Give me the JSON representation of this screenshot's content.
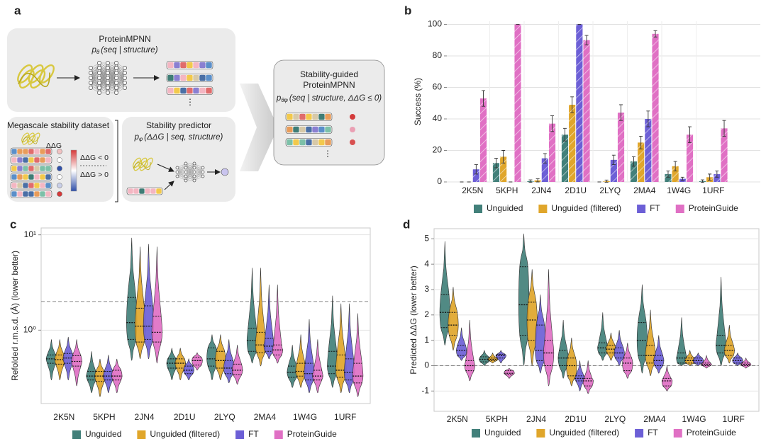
{
  "diagram": {
    "label": "a",
    "mpnn": {
      "title": "ProteinMPNN",
      "formula": {
        "p": "p",
        "sub": "θ",
        "rest": "(seq | structure)"
      },
      "ellipsis": "⋮"
    },
    "dataset": {
      "title": "Megascale stability dataset",
      "ddg": "ΔΔG",
      "neg": "ΔΔG < 0",
      "pos": "ΔΔG > 0"
    },
    "predictor": {
      "title": "Stability predictor",
      "formula": {
        "p": "p",
        "sub": "φ",
        "rest": "(ΔΔG | seq, structure)"
      }
    },
    "guided": {
      "title": [
        "Stability-guided",
        "ProteinMPNN"
      ],
      "formula": {
        "p": "p",
        "sub": "θφ",
        "rest": "(seq | structure, ΔΔG ≤ 0)"
      },
      "ellipsis": "⋮"
    }
  },
  "chart_data": [
    {
      "type": "bar",
      "label": "b",
      "ylabel": "Success (%)",
      "categories": [
        "2K5N",
        "5KPH",
        "2JN4",
        "2D1U",
        "2LYQ",
        "2MA4",
        "1W4G",
        "1URF"
      ],
      "ylim": [
        0,
        102
      ],
      "yticks": [
        0,
        20,
        40,
        60,
        80,
        100
      ],
      "grid": true,
      "series": [
        {
          "name": "Unguided",
          "color": "#42807a",
          "values": [
            0,
            12,
            0.5,
            30,
            0,
            13,
            5,
            0.5
          ],
          "errors": [
            0,
            3,
            0.8,
            4,
            0,
            3,
            2,
            0.8
          ]
        },
        {
          "name": "Unguided (filtered)",
          "color": "#e0a62b",
          "values": [
            0,
            16,
            1,
            49,
            0.5,
            25,
            10,
            3
          ],
          "errors": [
            0,
            4,
            1,
            5,
            0.7,
            4,
            3,
            2
          ]
        },
        {
          "name": "FT",
          "color": "#6c5fd6",
          "values": [
            8,
            0,
            15,
            100,
            14,
            40,
            2,
            5
          ],
          "errors": [
            3,
            0,
            3,
            0,
            3,
            5,
            1,
            2
          ]
        },
        {
          "name": "ProteinGuide",
          "color": "#e070c4",
          "values": [
            53,
            100,
            37,
            90,
            44,
            94,
            30,
            34
          ],
          "errors": [
            5,
            0,
            5,
            3,
            5,
            2,
            5,
            5
          ]
        }
      ]
    },
    {
      "type": "violin",
      "label": "c",
      "ylabel": "Refolded r.m.s.d. (Å) (lower better)",
      "categories": [
        "2K5N",
        "5KPH",
        "2JN4",
        "2D1U",
        "2LYQ",
        "2MA4",
        "1W4G",
        "1URF"
      ],
      "ylim": [
        0.17,
        11.8
      ],
      "log": true,
      "yticks": [
        {
          "value": 1,
          "label": "10⁰"
        },
        {
          "value": 10,
          "label": "10¹"
        }
      ],
      "grid": true,
      "reference_line": 2,
      "series": [
        {
          "name": "Unguided",
          "color": "#42807a",
          "min": [
            0.3,
            0.22,
            0.48,
            0.3,
            0.3,
            0.45,
            0.25,
            0.25
          ],
          "q1": [
            0.45,
            0.3,
            0.8,
            0.4,
            0.42,
            0.6,
            0.32,
            0.35
          ],
          "median": [
            0.5,
            0.33,
            1.2,
            0.45,
            0.5,
            0.78,
            0.36,
            0.42
          ],
          "q3": [
            0.55,
            0.37,
            2.2,
            0.5,
            0.65,
            1.05,
            0.42,
            0.6
          ],
          "max": [
            0.8,
            0.6,
            9.3,
            0.65,
            0.9,
            4.5,
            0.7,
            2.3
          ]
        },
        {
          "name": "Unguided (filtered)",
          "color": "#e0a62b",
          "min": [
            0.3,
            0.2,
            0.5,
            0.3,
            0.3,
            0.42,
            0.25,
            0.22
          ],
          "q1": [
            0.44,
            0.29,
            0.75,
            0.4,
            0.4,
            0.58,
            0.33,
            0.32
          ],
          "median": [
            0.49,
            0.33,
            1.1,
            0.45,
            0.48,
            0.7,
            0.37,
            0.38
          ],
          "q3": [
            0.55,
            0.37,
            1.7,
            0.5,
            0.6,
            0.95,
            0.45,
            0.55
          ],
          "max": [
            0.8,
            0.5,
            7.5,
            0.65,
            0.9,
            4.5,
            0.9,
            1.9
          ]
        },
        {
          "name": "FT",
          "color": "#6c5fd6",
          "min": [
            0.3,
            0.22,
            0.5,
            0.3,
            0.28,
            0.5,
            0.22,
            0.22
          ],
          "q1": [
            0.45,
            0.3,
            0.8,
            0.35,
            0.35,
            0.6,
            0.3,
            0.3
          ],
          "median": [
            0.51,
            0.33,
            1.1,
            0.38,
            0.4,
            0.68,
            0.35,
            0.36
          ],
          "q3": [
            0.57,
            0.37,
            1.8,
            0.42,
            0.48,
            0.82,
            0.45,
            0.5
          ],
          "max": [
            0.85,
            0.55,
            8,
            0.5,
            0.8,
            3,
            1.3,
            1.9
          ]
        },
        {
          "name": "ProteinGuide",
          "color": "#e070c4",
          "min": [
            0.26,
            0.22,
            0.45,
            0.38,
            0.27,
            0.45,
            0.22,
            0.2
          ],
          "q1": [
            0.42,
            0.3,
            0.75,
            0.43,
            0.34,
            0.55,
            0.3,
            0.28
          ],
          "median": [
            0.47,
            0.33,
            0.95,
            0.48,
            0.38,
            0.62,
            0.33,
            0.33
          ],
          "q3": [
            0.54,
            0.38,
            1.4,
            0.52,
            0.44,
            0.7,
            0.38,
            0.45
          ],
          "max": [
            0.8,
            0.5,
            7.5,
            0.58,
            0.7,
            3,
            0.8,
            1.5
          ]
        }
      ]
    },
    {
      "type": "violin",
      "label": "d",
      "ylabel": "Predicted ΔΔG (lower better)",
      "categories": [
        "2K5N",
        "5KPH",
        "2JN4",
        "2D1U",
        "2LYQ",
        "2MA4",
        "1W4G",
        "1URF"
      ],
      "ylim": [
        -1.8,
        5.4
      ],
      "yticks": [
        -1,
        0,
        1,
        2,
        3,
        4,
        5
      ],
      "grid": true,
      "reference_line": 0,
      "series": [
        {
          "name": "Unguided",
          "color": "#42807a",
          "min": [
            0.8,
            0,
            0,
            -0.5,
            0.2,
            -0.3,
            0,
            0
          ],
          "q1": [
            1.5,
            0.15,
            1.2,
            0,
            0.5,
            0.4,
            0.1,
            0.5
          ],
          "median": [
            2.1,
            0.25,
            2.4,
            0.3,
            0.7,
            1,
            0.3,
            0.8
          ],
          "q3": [
            2.8,
            0.35,
            3.9,
            0.6,
            0.9,
            1.7,
            0.5,
            1.2
          ],
          "max": [
            4.9,
            0.6,
            5.2,
            1.8,
            2.1,
            3.2,
            1.9,
            3.5
          ]
        },
        {
          "name": "Unguided (filtered)",
          "color": "#e0a62b",
          "min": [
            0.6,
            0.1,
            0,
            -0.8,
            0.2,
            -0.4,
            0,
            0.1
          ],
          "q1": [
            1.2,
            0.2,
            1,
            -0.4,
            0.5,
            0.1,
            0.1,
            0.4
          ],
          "median": [
            1.6,
            0.25,
            1.8,
            0,
            0.65,
            0.4,
            0.2,
            0.6
          ],
          "q3": [
            2.1,
            0.3,
            2.5,
            0.3,
            0.8,
            0.8,
            0.3,
            0.8
          ],
          "max": [
            3.1,
            0.5,
            3.8,
            1.1,
            1.3,
            2.2,
            0.6,
            1.6
          ]
        },
        {
          "name": "FT",
          "color": "#6c5fd6",
          "min": [
            0.2,
            0.1,
            -0.3,
            -1,
            0,
            -0.3,
            0,
            0
          ],
          "q1": [
            0.4,
            0.3,
            0.2,
            -0.6,
            0.3,
            0,
            0.1,
            0.1
          ],
          "median": [
            0.6,
            0.4,
            0.6,
            -0.5,
            0.5,
            0.2,
            0.2,
            0.2
          ],
          "q3": [
            0.8,
            0.45,
            1.6,
            -0.4,
            0.7,
            0.4,
            0.3,
            0.3
          ],
          "max": [
            1.5,
            0.6,
            2.8,
            0.2,
            1.4,
            1.2,
            0.5,
            0.5
          ]
        },
        {
          "name": "ProteinGuide",
          "color": "#e070c4",
          "min": [
            -0.6,
            -0.5,
            -0.8,
            -1.1,
            -0.5,
            -1,
            -0.1,
            -0.1
          ],
          "q1": [
            -0.2,
            -0.35,
            0,
            -0.8,
            -0.2,
            -0.8,
            0,
            0
          ],
          "median": [
            0,
            -0.3,
            0.5,
            -0.6,
            0.1,
            -0.6,
            0.05,
            0.05
          ],
          "q3": [
            0.2,
            -0.2,
            1,
            -0.5,
            0.3,
            -0.5,
            0.1,
            0.1
          ],
          "max": [
            1.8,
            -0.1,
            3.8,
            0.2,
            0.9,
            0,
            0.4,
            0.3
          ]
        }
      ]
    }
  ]
}
